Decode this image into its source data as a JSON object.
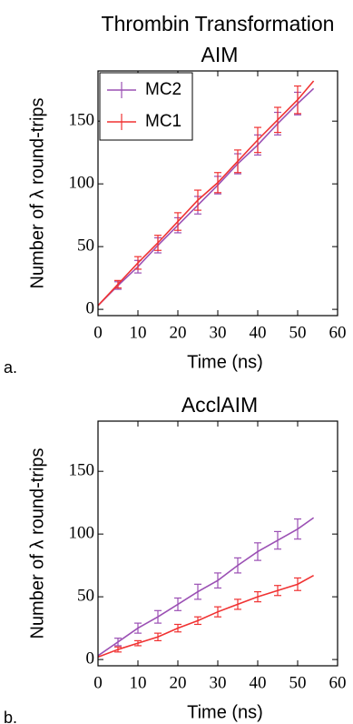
{
  "chart_data": [
    {
      "type": "line",
      "suptitle": "Thrombin Transformation",
      "title": "AIM",
      "panel_label": "a.",
      "xlabel": "Time (ns)",
      "ylabel": "Number of λ round-trips",
      "x": [
        0,
        5,
        10,
        15,
        20,
        25,
        30,
        35,
        40,
        45,
        50,
        54
      ],
      "series": [
        {
          "name": "MC2",
          "color": "#9b50b4",
          "values": [
            3,
            19,
            34,
            51,
            67,
            83,
            99,
            116,
            131,
            148,
            164,
            176
          ],
          "errors": [
            null,
            3,
            5,
            6,
            6,
            7,
            7,
            8,
            8,
            9,
            9,
            null
          ]
        },
        {
          "name": "MC1",
          "color": "#f03232",
          "values": [
            3,
            20,
            37,
            53,
            70,
            87,
            101,
            118,
            135,
            151,
            167,
            182
          ],
          "errors": [
            null,
            3,
            5,
            6,
            7,
            8,
            8,
            9,
            10,
            10,
            11,
            null
          ]
        }
      ],
      "xlim": [
        0,
        60
      ],
      "xticks": [
        0,
        10,
        20,
        30,
        40,
        50,
        60
      ],
      "ylim": [
        -5,
        190
      ],
      "yticks": [
        0,
        50,
        100,
        150
      ],
      "legend": "upper left"
    },
    {
      "type": "line",
      "title": "AcclAIM",
      "panel_label": "b.",
      "xlabel": "Time (ns)",
      "ylabel": "Number of λ round-trips",
      "x": [
        0,
        5,
        10,
        15,
        20,
        25,
        30,
        35,
        40,
        45,
        50,
        54
      ],
      "series": [
        {
          "name": "MC2",
          "color": "#9b50b4",
          "values": [
            3,
            14,
            25,
            34,
            44,
            54,
            63,
            75,
            86,
            95,
            104,
            113
          ],
          "errors": [
            null,
            3,
            4,
            5,
            5,
            6,
            6,
            6,
            7,
            7,
            8,
            null
          ]
        },
        {
          "name": "MC1",
          "color": "#f03232",
          "values": [
            2,
            8,
            13,
            18,
            25,
            31,
            38,
            44,
            50,
            55,
            60,
            67
          ],
          "errors": [
            null,
            2,
            2,
            3,
            3,
            3,
            4,
            4,
            4,
            4,
            5,
            null
          ]
        }
      ],
      "xlim": [
        0,
        60
      ],
      "xticks": [
        0,
        10,
        20,
        30,
        40,
        50,
        60
      ],
      "ylim": [
        -5,
        190
      ],
      "yticks": [
        0,
        50,
        100,
        150
      ],
      "legend": false
    }
  ]
}
